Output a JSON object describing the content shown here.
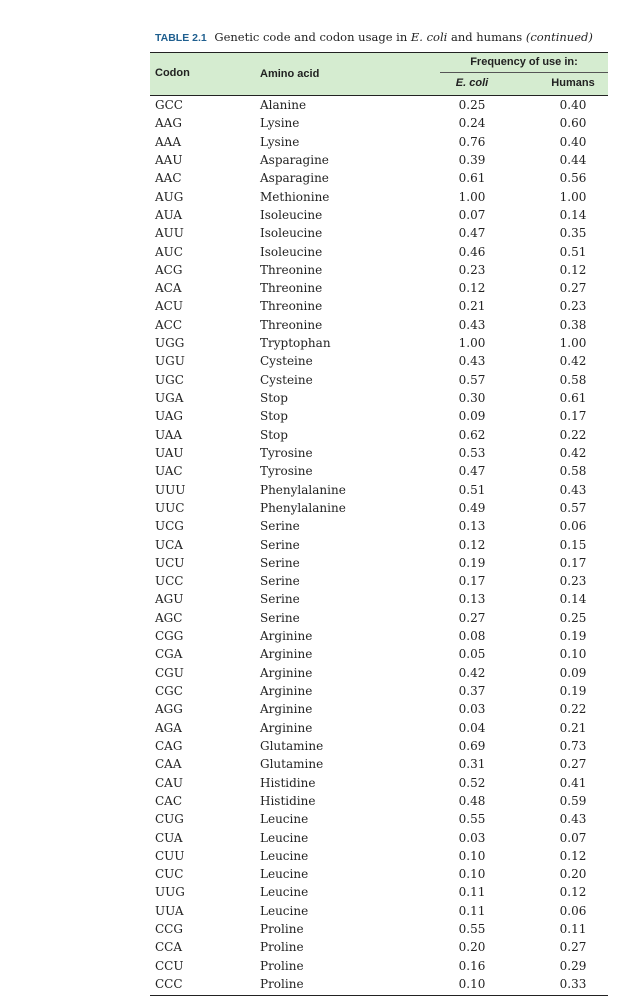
{
  "caption": {
    "label": "TABLE 2.1",
    "text_before": "Genetic code and codon usage in",
    "organism": "E. coli",
    "text_after": "and humans",
    "continued": "(continued)"
  },
  "headers": {
    "codon": "Codon",
    "amino_acid": "Amino acid",
    "frequency": "Frequency of use in:",
    "ecoli": "E. coli",
    "humans": "Humans"
  },
  "rows": [
    [
      "GCC",
      "Alanine",
      "0.25",
      "0.40"
    ],
    [
      "AAG",
      "Lysine",
      "0.24",
      "0.60"
    ],
    [
      "AAA",
      "Lysine",
      "0.76",
      "0.40"
    ],
    [
      "AAU",
      "Asparagine",
      "0.39",
      "0.44"
    ],
    [
      "AAC",
      "Asparagine",
      "0.61",
      "0.56"
    ],
    [
      "AUG",
      "Methionine",
      "1.00",
      "1.00"
    ],
    [
      "AUA",
      "Isoleucine",
      "0.07",
      "0.14"
    ],
    [
      "AUU",
      "Isoleucine",
      "0.47",
      "0.35"
    ],
    [
      "AUC",
      "Isoleucine",
      "0.46",
      "0.51"
    ],
    [
      "ACG",
      "Threonine",
      "0.23",
      "0.12"
    ],
    [
      "ACA",
      "Threonine",
      "0.12",
      "0.27"
    ],
    [
      "ACU",
      "Threonine",
      "0.21",
      "0.23"
    ],
    [
      "ACC",
      "Threonine",
      "0.43",
      "0.38"
    ],
    [
      "UGG",
      "Tryptophan",
      "1.00",
      "1.00"
    ],
    [
      "UGU",
      "Cysteine",
      "0.43",
      "0.42"
    ],
    [
      "UGC",
      "Cysteine",
      "0.57",
      "0.58"
    ],
    [
      "UGA",
      "Stop",
      "0.30",
      "0.61"
    ],
    [
      "UAG",
      "Stop",
      "0.09",
      "0.17"
    ],
    [
      "UAA",
      "Stop",
      "0.62",
      "0.22"
    ],
    [
      "UAU",
      "Tyrosine",
      "0.53",
      "0.42"
    ],
    [
      "UAC",
      "Tyrosine",
      "0.47",
      "0.58"
    ],
    [
      "UUU",
      "Phenylalanine",
      "0.51",
      "0.43"
    ],
    [
      "UUC",
      "Phenylalanine",
      "0.49",
      "0.57"
    ],
    [
      "UCG",
      "Serine",
      "0.13",
      "0.06"
    ],
    [
      "UCA",
      "Serine",
      "0.12",
      "0.15"
    ],
    [
      "UCU",
      "Serine",
      "0.19",
      "0.17"
    ],
    [
      "UCC",
      "Serine",
      "0.17",
      "0.23"
    ],
    [
      "AGU",
      "Serine",
      "0.13",
      "0.14"
    ],
    [
      "AGC",
      "Serine",
      "0.27",
      "0.25"
    ],
    [
      "CGG",
      "Arginine",
      "0.08",
      "0.19"
    ],
    [
      "CGA",
      "Arginine",
      "0.05",
      "0.10"
    ],
    [
      "CGU",
      "Arginine",
      "0.42",
      "0.09"
    ],
    [
      "CGC",
      "Arginine",
      "0.37",
      "0.19"
    ],
    [
      "AGG",
      "Arginine",
      "0.03",
      "0.22"
    ],
    [
      "AGA",
      "Arginine",
      "0.04",
      "0.21"
    ],
    [
      "CAG",
      "Glutamine",
      "0.69",
      "0.73"
    ],
    [
      "CAA",
      "Glutamine",
      "0.31",
      "0.27"
    ],
    [
      "CAU",
      "Histidine",
      "0.52",
      "0.41"
    ],
    [
      "CAC",
      "Histidine",
      "0.48",
      "0.59"
    ],
    [
      "CUG",
      "Leucine",
      "0.55",
      "0.43"
    ],
    [
      "CUA",
      "Leucine",
      "0.03",
      "0.07"
    ],
    [
      "CUU",
      "Leucine",
      "0.10",
      "0.12"
    ],
    [
      "CUC",
      "Leucine",
      "0.10",
      "0.20"
    ],
    [
      "UUG",
      "Leucine",
      "0.11",
      "0.12"
    ],
    [
      "UUA",
      "Leucine",
      "0.11",
      "0.06"
    ],
    [
      "CCG",
      "Proline",
      "0.55",
      "0.11"
    ],
    [
      "CCA",
      "Proline",
      "0.20",
      "0.27"
    ],
    [
      "CCU",
      "Proline",
      "0.16",
      "0.29"
    ],
    [
      "CCC",
      "Proline",
      "0.10",
      "0.33"
    ]
  ]
}
